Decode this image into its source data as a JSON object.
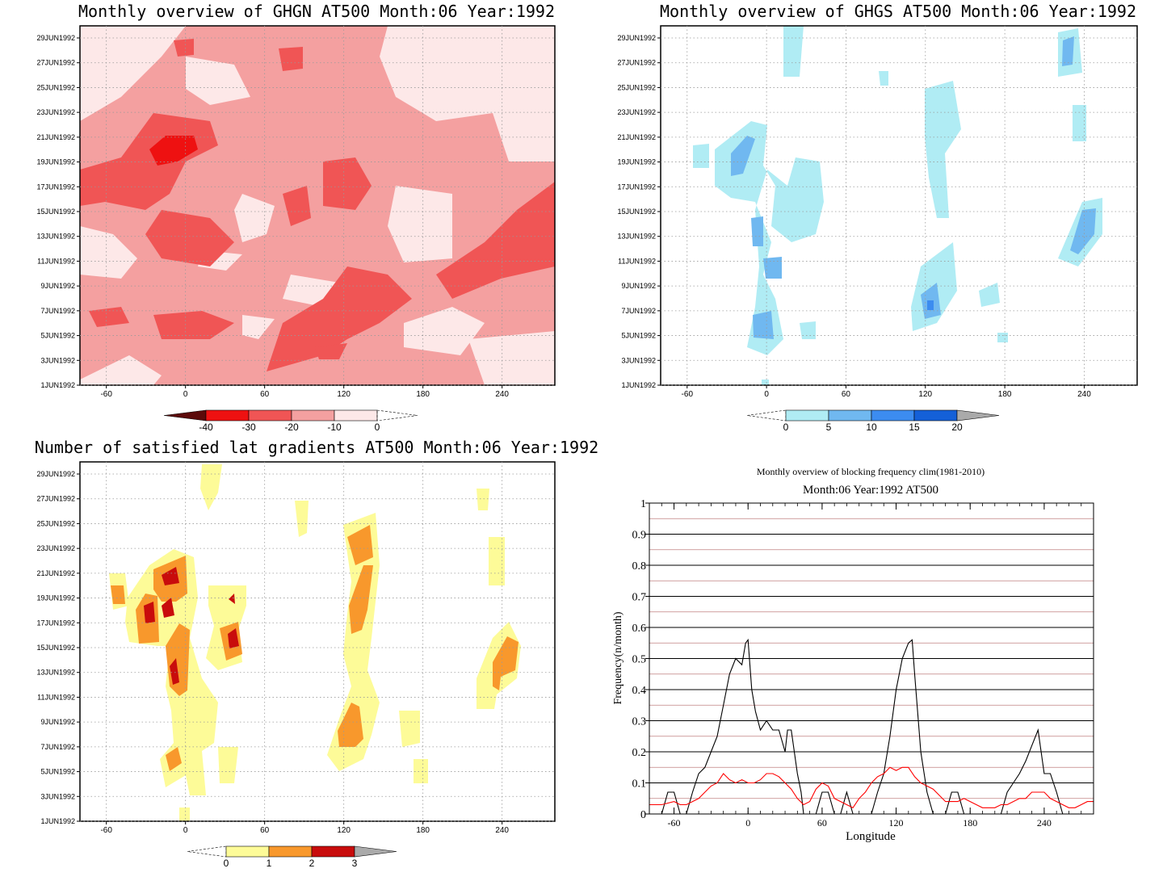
{
  "chart_data": [
    {
      "type": "heatmap",
      "title": "Monthly overview of GHGN AT500 Month:06 Year:1992",
      "y_ticks": [
        "29JUN1992",
        "27JUN1992",
        "25JUN1992",
        "23JUN1992",
        "21JUN1992",
        "19JUN1992",
        "17JUN1992",
        "15JUN1992",
        "13JUN1992",
        "11JUN1992",
        "9JUN1992",
        "7JUN1992",
        "5JUN1992",
        "3JUN1992",
        "1JUN1992"
      ],
      "x_ticks": [
        -60,
        0,
        60,
        120,
        180,
        240
      ],
      "xlim": [
        -80,
        280
      ],
      "colorbar": {
        "labels": [
          "-40",
          "-30",
          "-20",
          "-10",
          "0"
        ],
        "colors": [
          "#5c0a0a",
          "#ee1111",
          "#f05555",
          "#f4a0a0",
          "#fde8e8"
        ]
      }
    },
    {
      "type": "heatmap",
      "title": "Monthly overview of GHGS AT500 Month:06 Year:1992",
      "y_ticks": [
        "29JUN1992",
        "27JUN1992",
        "25JUN1992",
        "23JUN1992",
        "21JUN1992",
        "19JUN1992",
        "17JUN1992",
        "15JUN1992",
        "13JUN1992",
        "11JUN1992",
        "9JUN1992",
        "7JUN1992",
        "5JUN1992",
        "3JUN1992",
        "1JUN1992"
      ],
      "x_ticks": [
        -60,
        0,
        60,
        120,
        180,
        240
      ],
      "xlim": [
        -80,
        280
      ],
      "colorbar": {
        "labels": [
          "0",
          "5",
          "10",
          "15",
          "20"
        ],
        "colors": [
          "#b0ecf4",
          "#70b8f0",
          "#3c8cf0",
          "#1460d8",
          "#aaaaaa"
        ]
      }
    },
    {
      "type": "heatmap",
      "title": "Number of satisfied lat gradients AT500 Month:06 Year:1992",
      "y_ticks": [
        "29JUN1992",
        "27JUN1992",
        "25JUN1992",
        "23JUN1992",
        "21JUN1992",
        "19JUN1992",
        "17JUN1992",
        "15JUN1992",
        "13JUN1992",
        "11JUN1992",
        "9JUN1992",
        "7JUN1992",
        "5JUN1992",
        "3JUN1992",
        "1JUN1992"
      ],
      "x_ticks": [
        -60,
        0,
        60,
        120,
        180,
        240
      ],
      "xlim": [
        -80,
        280
      ],
      "colorbar": {
        "labels": [
          "0",
          "1",
          "2",
          "3"
        ],
        "colors": [
          "#fdfb98",
          "#f8982c",
          "#c80c0c",
          "#aaaaaa"
        ]
      }
    },
    {
      "type": "line",
      "title": "Monthly overview of blocking frequency clim(1981-2010)",
      "subtitle": "Month:06 Year:1992  AT500",
      "xlabel": "Longitude",
      "ylabel": "Frequency(n/month)",
      "xlim": [
        -80,
        280
      ],
      "ylim": [
        0,
        1
      ],
      "x_ticks": [
        -60,
        0,
        60,
        120,
        180,
        240
      ],
      "y_ticks": [
        "0",
        "0.1",
        "0.2",
        "0.3",
        "0.4",
        "0.5",
        "0.6",
        "0.7",
        "0.8",
        "0.9",
        "1"
      ],
      "grid": true,
      "series": [
        {
          "color": "#000000",
          "x": [
            -80,
            -70,
            -65,
            -60,
            -55,
            -50,
            -45,
            -40,
            -35,
            -30,
            -25,
            -20,
            -15,
            -10,
            -5,
            -2,
            0,
            3,
            6,
            10,
            15,
            20,
            25,
            30,
            32,
            35,
            40,
            43,
            45,
            50,
            55,
            60,
            65,
            70,
            75,
            80,
            85,
            90,
            95,
            100,
            105,
            110,
            115,
            120,
            125,
            130,
            133,
            135,
            140,
            145,
            150,
            155,
            160,
            165,
            170,
            175,
            180,
            185,
            190,
            195,
            200,
            205,
            210,
            215,
            220,
            225,
            230,
            235,
            240,
            245,
            250,
            255,
            260,
            265,
            270,
            275,
            280
          ],
          "y": [
            0,
            0,
            0.07,
            0.07,
            0,
            0,
            0.07,
            0.13,
            0.15,
            0.2,
            0.25,
            0.35,
            0.45,
            0.5,
            0.48,
            0.55,
            0.56,
            0.4,
            0.33,
            0.27,
            0.3,
            0.27,
            0.27,
            0.2,
            0.27,
            0.27,
            0.13,
            0.07,
            0,
            0,
            0,
            0.07,
            0.07,
            0,
            0,
            0.07,
            0,
            0,
            0,
            0,
            0.07,
            0.13,
            0.25,
            0.4,
            0.5,
            0.55,
            0.56,
            0.45,
            0.2,
            0.07,
            0,
            0,
            0,
            0.07,
            0.07,
            0,
            0,
            0,
            0,
            0,
            0,
            0,
            0.07,
            0.1,
            0.13,
            0.17,
            0.22,
            0.27,
            0.13,
            0.13,
            0.07,
            0,
            0,
            0,
            0,
            0,
            0
          ]
        },
        {
          "color": "#ff0000",
          "x": [
            -80,
            -70,
            -60,
            -55,
            -50,
            -45,
            -40,
            -35,
            -30,
            -25,
            -20,
            -15,
            -10,
            -5,
            0,
            5,
            10,
            15,
            20,
            25,
            30,
            35,
            40,
            45,
            50,
            55,
            60,
            65,
            70,
            75,
            80,
            85,
            90,
            95,
            100,
            105,
            110,
            115,
            120,
            125,
            130,
            135,
            140,
            145,
            150,
            155,
            160,
            165,
            170,
            175,
            180,
            185,
            190,
            195,
            200,
            205,
            210,
            215,
            220,
            225,
            230,
            235,
            240,
            245,
            250,
            255,
            260,
            265,
            270,
            275,
            280
          ],
          "y": [
            0.03,
            0.03,
            0.04,
            0.03,
            0.03,
            0.04,
            0.05,
            0.07,
            0.09,
            0.1,
            0.13,
            0.11,
            0.1,
            0.11,
            0.1,
            0.1,
            0.11,
            0.13,
            0.13,
            0.12,
            0.1,
            0.08,
            0.05,
            0.03,
            0.04,
            0.08,
            0.1,
            0.09,
            0.05,
            0.04,
            0.03,
            0.02,
            0.05,
            0.07,
            0.1,
            0.12,
            0.13,
            0.15,
            0.14,
            0.15,
            0.15,
            0.12,
            0.1,
            0.09,
            0.08,
            0.06,
            0.04,
            0.04,
            0.04,
            0.05,
            0.04,
            0.03,
            0.02,
            0.02,
            0.02,
            0.03,
            0.03,
            0.04,
            0.05,
            0.05,
            0.07,
            0.07,
            0.07,
            0.05,
            0.04,
            0.03,
            0.02,
            0.02,
            0.03,
            0.04,
            0.04
          ]
        }
      ]
    }
  ]
}
